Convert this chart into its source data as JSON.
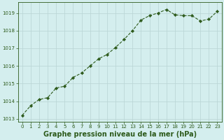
{
  "x": [
    0,
    1,
    2,
    3,
    4,
    5,
    6,
    7,
    8,
    9,
    10,
    11,
    12,
    13,
    14,
    15,
    16,
    17,
    18,
    19,
    20,
    21,
    22,
    23
  ],
  "y": [
    1013.2,
    1013.75,
    1014.1,
    1014.2,
    1014.75,
    1014.85,
    1015.35,
    1015.6,
    1016.0,
    1016.4,
    1016.65,
    1017.05,
    1017.5,
    1018.0,
    1018.6,
    1018.85,
    1019.0,
    1019.2,
    1018.9,
    1018.85,
    1018.85,
    1018.55,
    1018.65,
    1019.1
  ],
  "line_color": "#2d5a1b",
  "marker_color": "#2d5a1b",
  "bg_color": "#d4eeee",
  "grid_color": "#b8d4d4",
  "xlabel": "Graphe pression niveau de la mer (hPa)",
  "xlabel_color": "#2d5a1b",
  "xlim": [
    -0.5,
    23.5
  ],
  "ylim": [
    1012.85,
    1019.6
  ],
  "yticks": [
    1013,
    1014,
    1015,
    1016,
    1017,
    1018,
    1019
  ],
  "xticks": [
    0,
    1,
    2,
    3,
    4,
    5,
    6,
    7,
    8,
    9,
    10,
    11,
    12,
    13,
    14,
    15,
    16,
    17,
    18,
    19,
    20,
    21,
    22,
    23
  ],
  "tick_color": "#2d5a1b",
  "tick_fontsize": 5.0,
  "xlabel_fontsize": 7.0,
  "axis_color": "#2d5a1b",
  "linewidth": 0.8,
  "markersize": 2.2
}
